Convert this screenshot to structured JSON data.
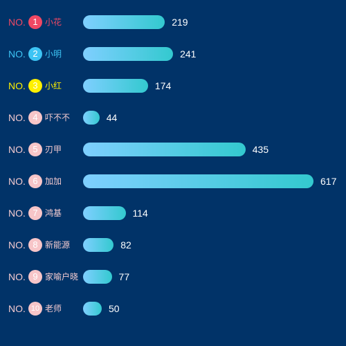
{
  "chart_data": {
    "type": "bar",
    "orientation": "horizontal",
    "prefix": "NO.",
    "xlim": [
      0,
      617
    ],
    "grid": false,
    "colors": {
      "rank1": "#f04864",
      "rank2": "#3dc4f4",
      "rank3": "#fff000",
      "other_rank_text": "#f5cbd0",
      "other_rank_circle": "#f7c5c8",
      "bar_start": "#7fcfff",
      "bar_end": "#33c9cf",
      "background": "#013368"
    },
    "rows": [
      {
        "rank": "1",
        "name": "小花",
        "value": 219
      },
      {
        "rank": "2",
        "name": "小明",
        "value": 241
      },
      {
        "rank": "3",
        "name": "小红",
        "value": 174
      },
      {
        "rank": "4",
        "name": "吓不不",
        "value": 44
      },
      {
        "rank": "5",
        "name": "刃甲",
        "value": 435
      },
      {
        "rank": "6",
        "name": "加加",
        "value": 617
      },
      {
        "rank": "7",
        "name": "鸿基",
        "value": 114
      },
      {
        "rank": "8",
        "name": "新能源",
        "value": 82
      },
      {
        "rank": "9",
        "name": "家喻户晓",
        "value": 77
      },
      {
        "rank": "10",
        "name": "老师",
        "value": 50
      }
    ]
  }
}
